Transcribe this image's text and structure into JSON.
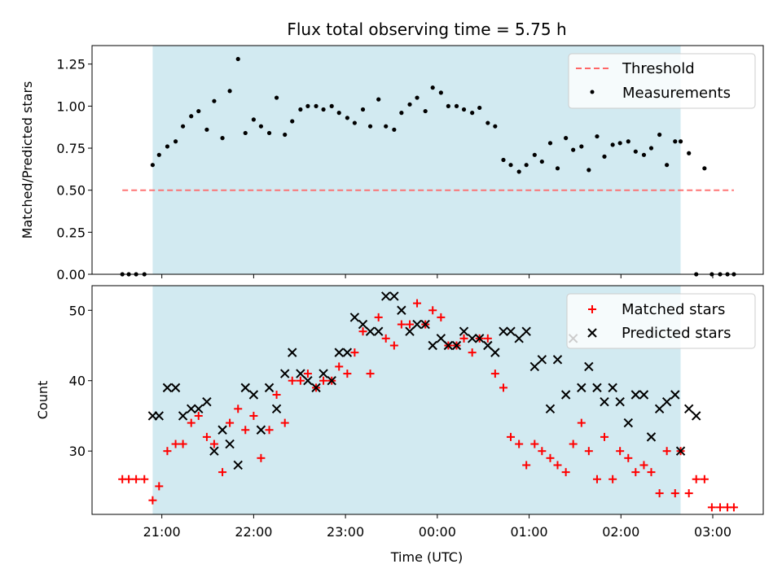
{
  "chart_data": {
    "type": "scatter",
    "title": "Flux total observing time = 5.75 h",
    "xlabel": "Time (UTC)",
    "x_ticks": [
      "21:00",
      "22:00",
      "23:00",
      "00:00",
      "01:00",
      "02:00",
      "03:00"
    ],
    "x_tick_hours": [
      0,
      1,
      2,
      3,
      4,
      5,
      6
    ],
    "xlim_hours": [
      -0.76,
      6.55
    ],
    "observing_window_hours": [
      -0.1,
      5.65
    ],
    "colors": {
      "window": "#add8e6",
      "threshold": "#ff6666",
      "measurements": "#000000",
      "matched": "#ff0000",
      "predicted": "#000000"
    },
    "panels": [
      {
        "id": "ratio",
        "ylabel": "Matched/Predicted stars",
        "ylim": [
          0,
          1.36
        ],
        "yticks": [
          0.0,
          0.25,
          0.5,
          0.75,
          1.0,
          1.25
        ],
        "ytick_labels": [
          "0.00",
          "0.25",
          "0.50",
          "0.75",
          "1.00",
          "1.25"
        ],
        "legend": [
          "Threshold",
          "Measurements"
        ],
        "threshold": {
          "name": "Threshold",
          "x": [
            -0.43,
            6.23
          ],
          "y": 0.5
        },
        "measurements": {
          "name": "Measurements",
          "x": [
            -0.43,
            -0.36,
            -0.28,
            -0.19,
            -0.1,
            -0.03,
            0.06,
            0.15,
            0.23,
            0.32,
            0.4,
            0.49,
            0.57,
            0.66,
            0.74,
            0.83,
            0.91,
            1,
            1.08,
            1.17,
            1.25,
            1.34,
            1.42,
            1.51,
            1.59,
            1.68,
            1.76,
            1.85,
            1.93,
            2.02,
            2.1,
            2.19,
            2.27,
            2.36,
            2.44,
            2.53,
            2.61,
            2.7,
            2.78,
            2.87,
            2.95,
            3.04,
            3.12,
            3.21,
            3.29,
            3.38,
            3.46,
            3.55,
            3.63,
            3.72,
            3.8,
            3.89,
            3.97,
            4.06,
            4.14,
            4.23,
            4.31,
            4.4,
            4.48,
            4.57,
            4.65,
            4.74,
            4.82,
            4.91,
            4.99,
            5.08,
            5.16,
            5.25,
            5.33,
            5.42,
            5.5,
            5.59,
            5.65,
            5.74,
            5.82,
            5.91,
            5.99,
            6.08,
            6.16,
            6.23
          ],
          "y": [
            0,
            0,
            0,
            0,
            0.65,
            0.71,
            0.76,
            0.79,
            0.88,
            0.94,
            0.97,
            0.86,
            1.03,
            0.81,
            1.09,
            1.28,
            0.84,
            0.92,
            0.88,
            0.84,
            1.05,
            0.83,
            0.91,
            0.98,
            1,
            1,
            0.98,
            1,
            0.96,
            0.93,
            0.9,
            0.98,
            0.88,
            1.04,
            0.88,
            0.86,
            0.96,
            1.01,
            1.05,
            0.97,
            1.11,
            1.08,
            1,
            1,
            0.98,
            0.96,
            0.99,
            0.9,
            0.88,
            0.68,
            0.65,
            0.61,
            0.65,
            0.71,
            0.67,
            0.78,
            0.63,
            0.81,
            0.74,
            0.76,
            0.62,
            0.82,
            0.7,
            0.77,
            0.78,
            0.79,
            0.73,
            0.71,
            0.75,
            0.83,
            0.65,
            0.79,
            0.79,
            0.72,
            0,
            0.63,
            0,
            0,
            0,
            0
          ]
        }
      },
      {
        "id": "counts",
        "ylabel": "Count",
        "ylim": [
          21,
          53.5
        ],
        "yticks": [
          30,
          40,
          50
        ],
        "ytick_labels": [
          "30",
          "40",
          "50"
        ],
        "legend": [
          "Matched stars",
          "Predicted stars"
        ],
        "matched": {
          "name": "Matched stars",
          "x": [
            -0.43,
            -0.36,
            -0.28,
            -0.19,
            -0.1,
            -0.03,
            0.06,
            0.15,
            0.23,
            0.32,
            0.4,
            0.49,
            0.57,
            0.66,
            0.74,
            0.83,
            0.91,
            1,
            1.08,
            1.17,
            1.25,
            1.34,
            1.42,
            1.51,
            1.59,
            1.68,
            1.76,
            1.85,
            1.93,
            2.02,
            2.1,
            2.19,
            2.27,
            2.36,
            2.44,
            2.53,
            2.61,
            2.7,
            2.78,
            2.87,
            2.95,
            3.04,
            3.12,
            3.21,
            3.29,
            3.38,
            3.46,
            3.55,
            3.63,
            3.72,
            3.8,
            3.89,
            3.97,
            4.06,
            4.14,
            4.23,
            4.31,
            4.4,
            4.48,
            4.57,
            4.65,
            4.74,
            4.82,
            4.91,
            4.99,
            5.08,
            5.16,
            5.25,
            5.33,
            5.42,
            5.5,
            5.59,
            5.65,
            5.74,
            5.82,
            5.91,
            5.99,
            6.08,
            6.16,
            6.23
          ],
          "y": [
            26,
            26,
            26,
            26,
            23,
            25,
            30,
            31,
            31,
            34,
            35,
            32,
            31,
            27,
            34,
            36,
            33,
            35,
            29,
            33,
            38,
            34,
            40,
            40,
            41,
            39,
            40,
            40,
            42,
            41,
            44,
            47,
            41,
            49,
            46,
            45,
            48,
            48,
            51,
            48,
            50,
            49,
            45,
            45,
            46,
            44,
            46,
            46,
            41,
            39,
            32,
            31,
            28,
            31,
            30,
            29,
            28,
            27,
            31,
            34,
            30,
            26,
            32,
            26,
            30,
            29,
            27,
            28,
            27,
            24,
            30,
            24,
            30,
            24,
            26,
            26,
            22,
            22,
            22,
            22
          ]
        },
        "predicted": {
          "name": "Predicted stars",
          "x": [
            -0.1,
            -0.03,
            0.06,
            0.15,
            0.23,
            0.32,
            0.4,
            0.49,
            0.57,
            0.66,
            0.74,
            0.83,
            0.91,
            1,
            1.08,
            1.17,
            1.25,
            1.34,
            1.42,
            1.51,
            1.59,
            1.68,
            1.76,
            1.85,
            1.93,
            2.02,
            2.1,
            2.19,
            2.27,
            2.36,
            2.44,
            2.53,
            2.61,
            2.7,
            2.78,
            2.87,
            2.95,
            3.04,
            3.12,
            3.21,
            3.29,
            3.38,
            3.46,
            3.55,
            3.63,
            3.72,
            3.8,
            3.89,
            3.97,
            4.06,
            4.14,
            4.23,
            4.31,
            4.4,
            4.48,
            4.57,
            4.65,
            4.74,
            4.82,
            4.91,
            4.99,
            5.08,
            5.16,
            5.25,
            5.33,
            5.42,
            5.5,
            5.59,
            5.65,
            5.74,
            5.82
          ],
          "y": [
            35,
            35,
            39,
            39,
            35,
            36,
            36,
            37,
            30,
            33,
            31,
            28,
            39,
            38,
            33,
            39,
            36,
            41,
            44,
            41,
            40,
            39,
            41,
            40,
            44,
            44,
            49,
            48,
            47,
            47,
            52,
            52,
            50,
            47,
            48,
            48,
            45,
            46,
            45,
            45,
            47,
            46,
            46,
            45,
            44,
            47,
            47,
            46,
            47,
            42,
            43,
            36,
            43,
            38,
            46,
            39,
            42,
            39,
            37,
            39,
            37,
            34,
            38,
            38,
            32,
            36,
            37,
            38,
            30,
            36,
            35
          ]
        }
      }
    ]
  }
}
